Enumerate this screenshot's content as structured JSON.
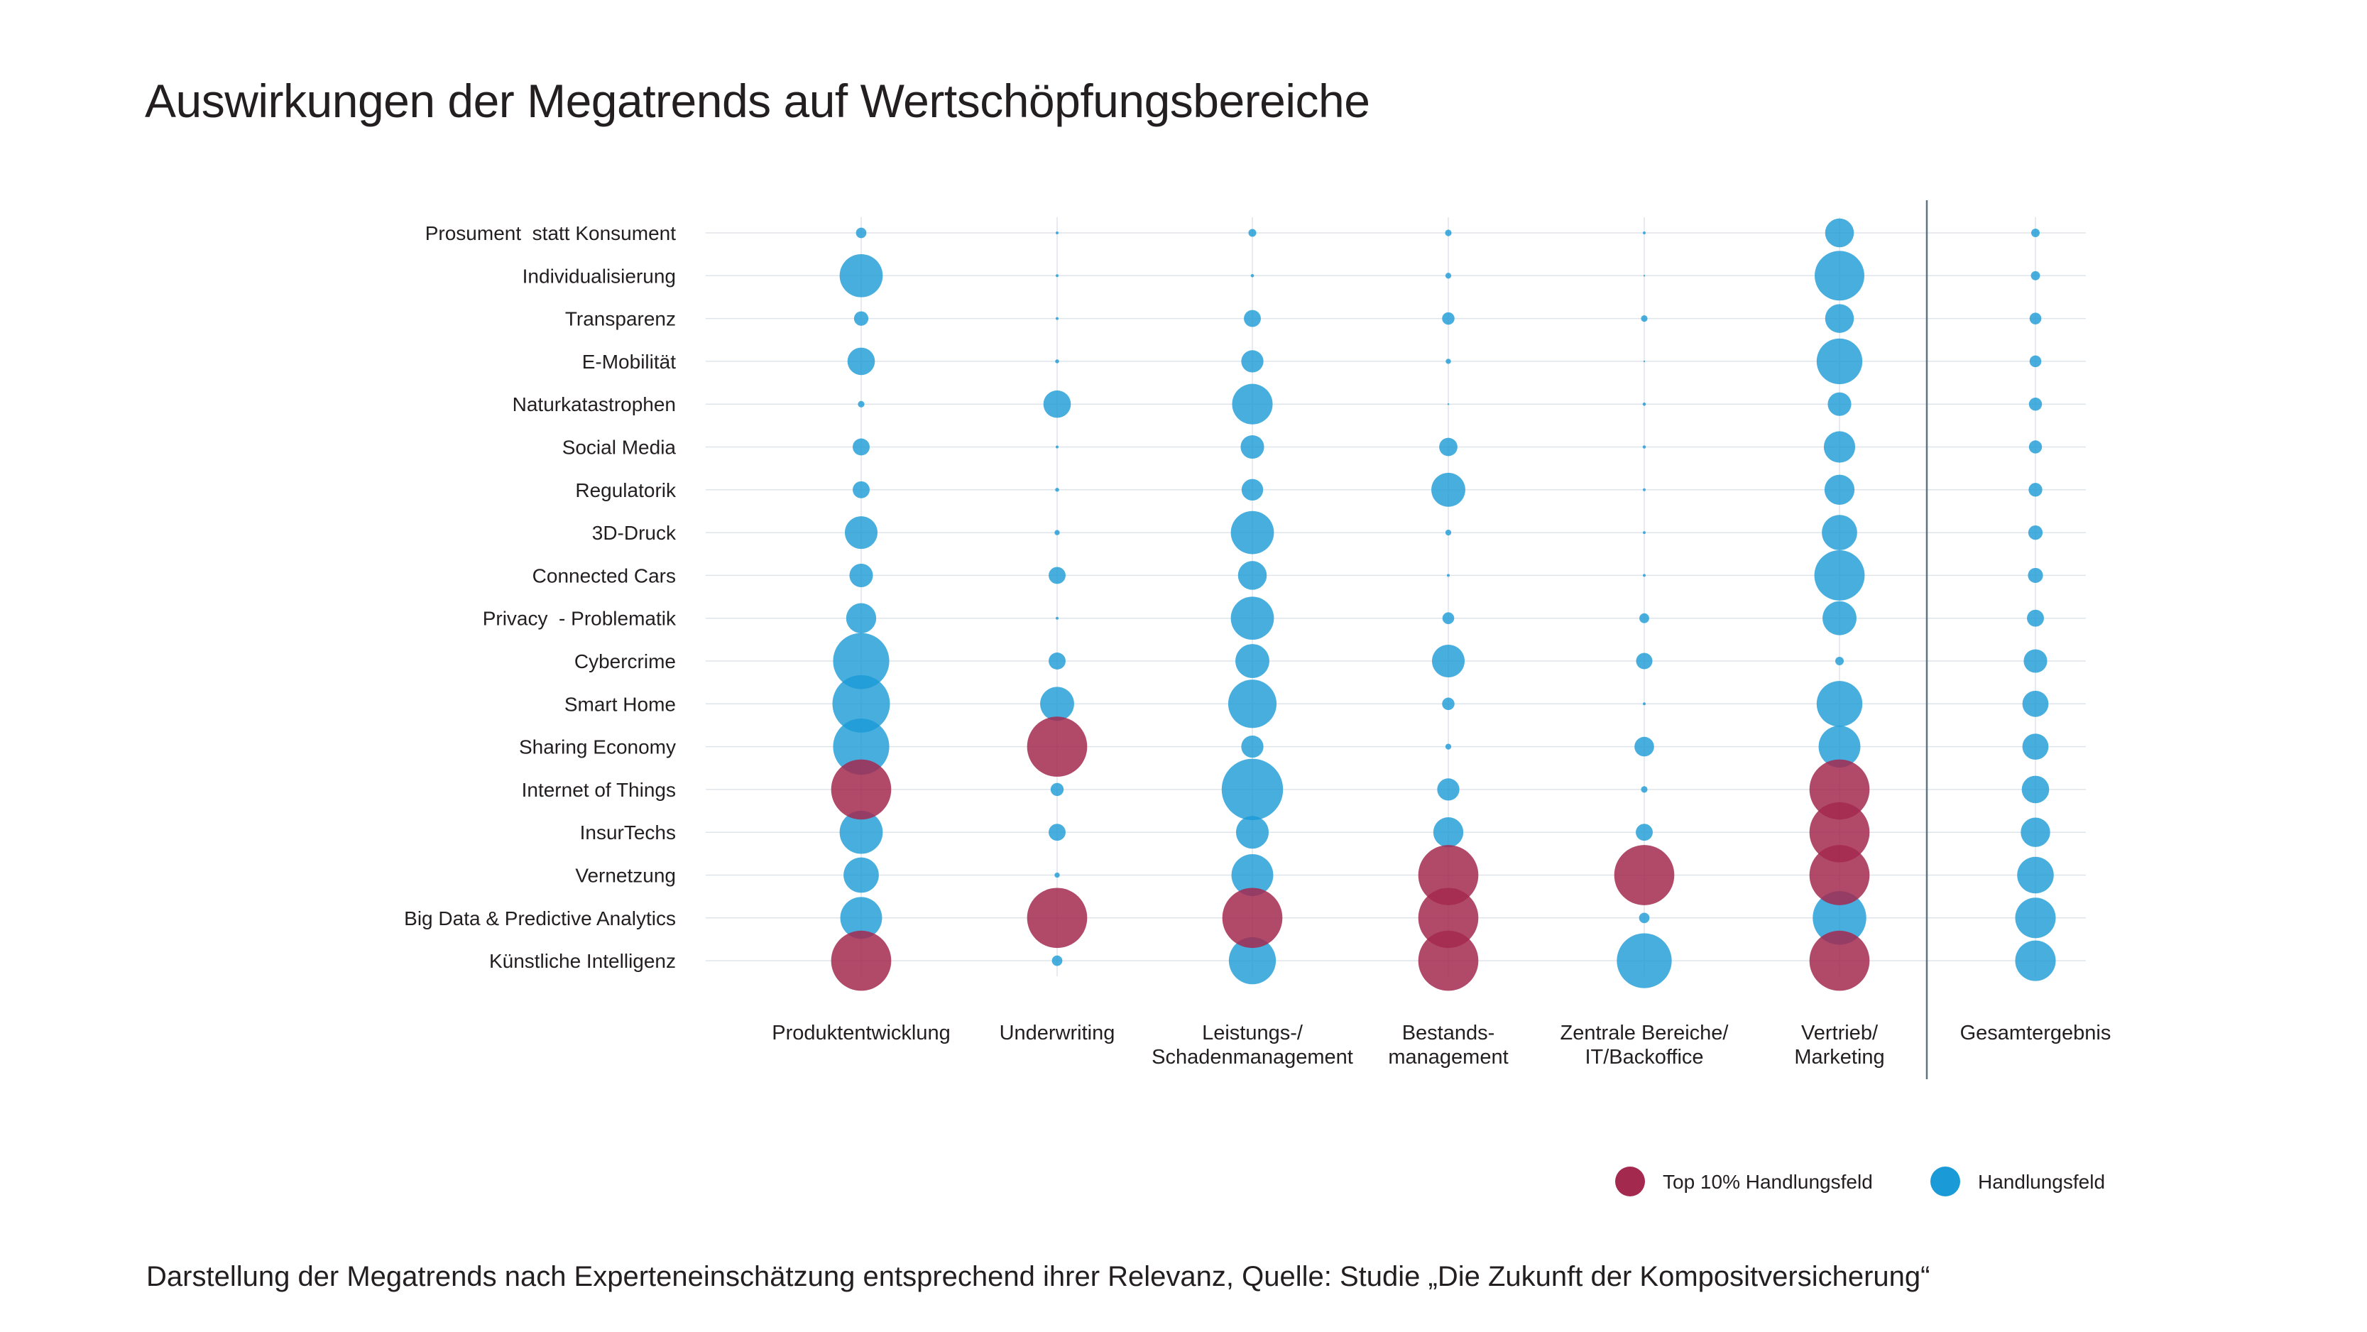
{
  "title": "Auswirkungen der Megatrends auf Wertschöpfungsbereiche",
  "caption": "Darstellung der Megatrends nach Experteneinschätzung entsprechend ihrer Relevanz, Quelle: Studie „Die Zukunft der Kompositversicherung“",
  "colors": {
    "handlungsfeld": "#1a9ad6",
    "top10": "#a3294f",
    "grid": "#dfe4ea",
    "divider": "#5f7480"
  },
  "chart_data": {
    "type": "bubble",
    "title": "Auswirkungen der Megatrends auf Wertschöpfungsbereiche",
    "rows": [
      "Prosument  statt Konsument",
      "Individualisierung",
      "Transparenz",
      "E-Mobilität",
      "Naturkatastrophen",
      "Social Media",
      "Regulatorik",
      "3D-Druck",
      "Connected Cars",
      "Privacy  - Problematik",
      "Cybercrime",
      "Smart Home",
      "Sharing Economy",
      "Internet of Things",
      "InsurTechs",
      "Vernetzung",
      "Big Data & Predictive Analytics",
      "Künstliche Intelligenz"
    ],
    "columns": [
      [
        "Produktentwicklung"
      ],
      [
        "Underwriting"
      ],
      [
        "Leistungs-/",
        "Schadenmanagement"
      ],
      [
        "Bestands-",
        "management"
      ],
      [
        "Zentrale Bereiche/",
        "IT/Backoffice"
      ],
      [
        "Vertrieb/",
        "Marketing"
      ],
      [
        "Gesamtergebnis"
      ]
    ],
    "size_scale": "relative relevance 0-1 (bubble radius)",
    "values": [
      [
        0.16,
        0.04,
        0.12,
        0.1,
        0.03,
        0.44,
        0.13
      ],
      [
        0.66,
        0.04,
        0.05,
        0.09,
        0.0,
        0.76,
        0.14
      ],
      [
        0.22,
        0.04,
        0.26,
        0.19,
        0.1,
        0.44,
        0.18
      ],
      [
        0.42,
        0.06,
        0.34,
        0.08,
        0.0,
        0.7,
        0.18
      ],
      [
        0.1,
        0.42,
        0.62,
        0.0,
        0.05,
        0.36,
        0.2
      ],
      [
        0.26,
        0.04,
        0.36,
        0.28,
        0.05,
        0.48,
        0.2
      ],
      [
        0.26,
        0.06,
        0.33,
        0.52,
        0.03,
        0.46,
        0.21
      ],
      [
        0.5,
        0.08,
        0.66,
        0.09,
        0.03,
        0.54,
        0.22
      ],
      [
        0.36,
        0.26,
        0.44,
        0.04,
        0.03,
        0.77,
        0.23
      ],
      [
        0.46,
        0.04,
        0.66,
        0.18,
        0.15,
        0.52,
        0.26
      ],
      [
        0.86,
        0.26,
        0.52,
        0.5,
        0.25,
        0.13,
        0.36
      ],
      [
        0.88,
        0.52,
        0.74,
        0.19,
        0.04,
        0.7,
        0.4
      ],
      [
        0.86,
        0.92,
        0.34,
        0.09,
        0.3,
        0.64,
        0.4
      ],
      [
        0.92,
        0.2,
        0.94,
        0.34,
        0.1,
        0.92,
        0.42
      ],
      [
        0.66,
        0.26,
        0.5,
        0.46,
        0.26,
        0.92,
        0.45
      ],
      [
        0.54,
        0.08,
        0.64,
        0.92,
        0.92,
        0.92,
        0.56
      ],
      [
        0.64,
        0.92,
        0.92,
        0.92,
        0.16,
        0.82,
        0.62
      ],
      [
        0.92,
        0.16,
        0.72,
        0.92,
        0.84,
        0.92,
        0.62
      ]
    ],
    "top10": [
      [
        13,
        0
      ],
      [
        17,
        0
      ],
      [
        12,
        1
      ],
      [
        16,
        1
      ],
      [
        16,
        2
      ],
      [
        15,
        3
      ],
      [
        16,
        3
      ],
      [
        17,
        3
      ],
      [
        15,
        4
      ],
      [
        13,
        5
      ],
      [
        14,
        5
      ],
      [
        15,
        5
      ],
      [
        17,
        5
      ]
    ],
    "legend": [
      {
        "label": "Top 10% Handlungsfeld",
        "color": "#a3294f"
      },
      {
        "label": "Handlungsfeld",
        "color": "#1a9ad6"
      }
    ],
    "legend_position": "bottom-right"
  }
}
